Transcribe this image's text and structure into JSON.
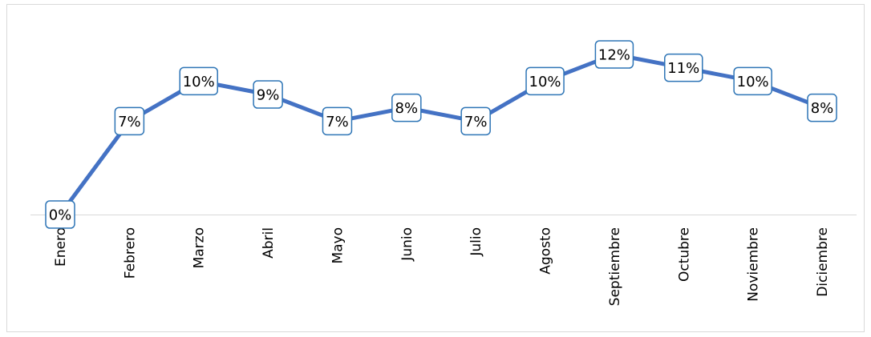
{
  "chart_data": {
    "type": "line",
    "categories": [
      "Enero",
      "Febrero",
      "Marzo",
      "Abril",
      "Mayo",
      "Junio",
      "Julio",
      "Agosto",
      "Septiembre",
      "Octubre",
      "Noviembre",
      "Diciembre"
    ],
    "values": [
      0,
      7,
      10,
      9,
      7,
      8,
      7,
      10,
      12,
      11,
      10,
      8
    ],
    "value_labels": [
      "0%",
      "7%",
      "10%",
      "9%",
      "7%",
      "8%",
      "7%",
      "10%",
      "12%",
      "11%",
      "10%",
      "8%"
    ],
    "color": "#4472c4"
  }
}
